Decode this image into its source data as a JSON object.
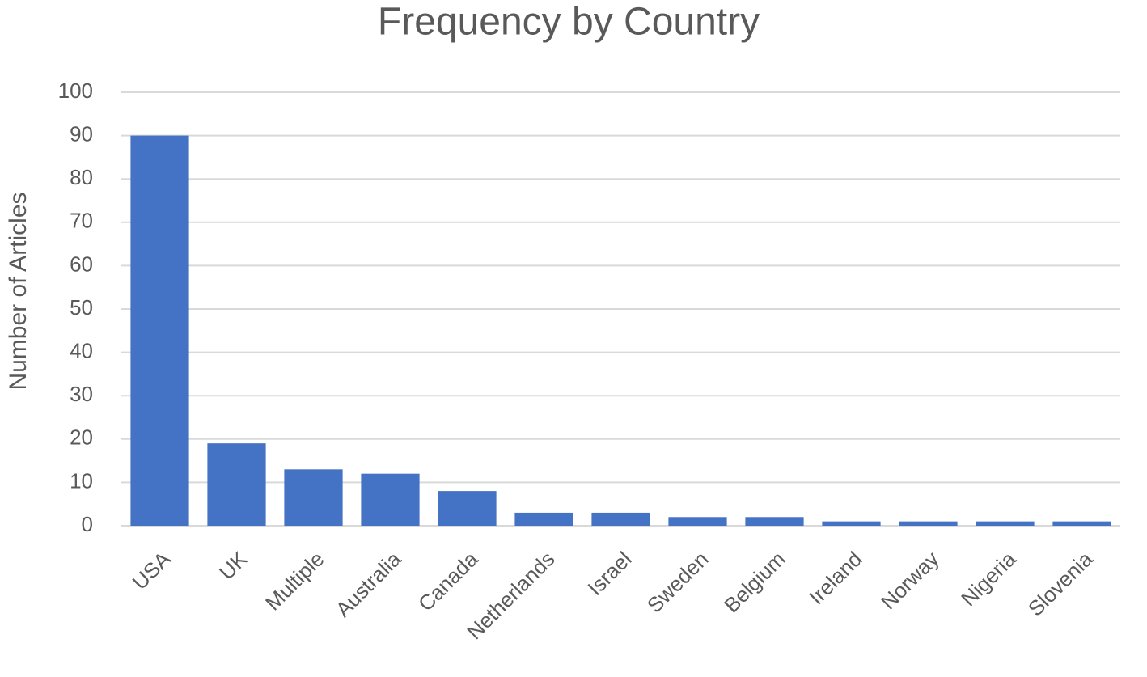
{
  "chart_data": {
    "type": "bar",
    "title": "Frequency by Country",
    "y_label": "Number of Articles",
    "categories": [
      "USA",
      "UK",
      "Multiple",
      "Australia",
      "Canada",
      "Netherlands",
      "Israel",
      "Sweden",
      "Belgium",
      "Ireland",
      "Norway",
      "Nigeria",
      "Slovenia"
    ],
    "values": [
      90,
      19,
      13,
      12,
      8,
      3,
      3,
      2,
      2,
      1,
      1,
      1,
      1
    ],
    "color": "#4472c4",
    "ylim": [
      0,
      100
    ],
    "yticks": [
      0,
      10,
      20,
      30,
      40,
      50,
      60,
      70,
      80,
      90,
      100
    ],
    "grid": true
  }
}
